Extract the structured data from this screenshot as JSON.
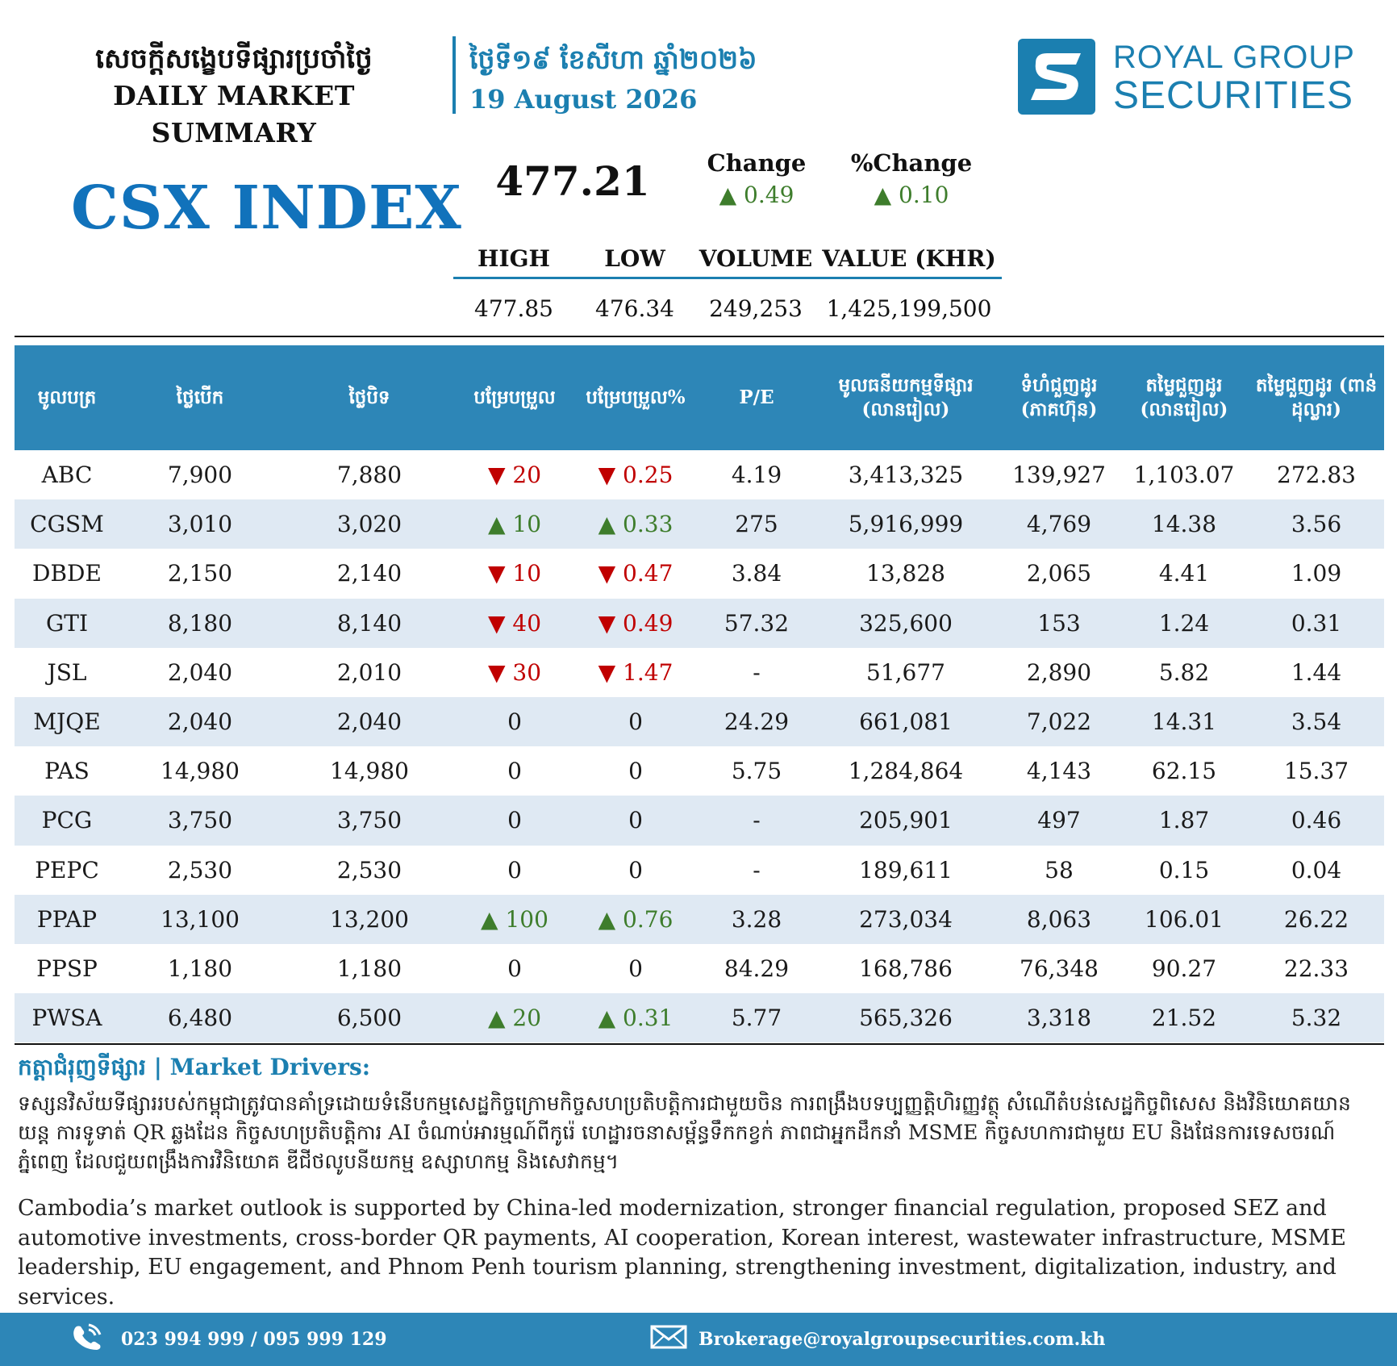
{
  "header": {
    "title_km": "សេចក្តីសង្ខេបទីផ្សារប្រចាំថ្ងៃ",
    "title_en": "DAILY MARKET SUMMARY",
    "date_km": "ថ្ងៃទី១៩ ខែសីហា ឆ្នាំ២០២៦",
    "date_en": "19 August 2026"
  },
  "logo": {
    "line1": "ROYAL GROUP",
    "line2": "SECURITIES"
  },
  "index": {
    "name": "CSX INDEX",
    "value": "477.21",
    "change_label": "Change",
    "change_value": "▲ 0.49",
    "pct_change_label": "%Change",
    "pct_change_value": "▲ 0.10",
    "stat_headers": [
      "HIGH",
      "LOW",
      "VOLUME",
      "VALUE (KHR)"
    ],
    "stat_values": [
      "477.85",
      "476.34",
      "249,253",
      "1,425,199,500"
    ]
  },
  "table": {
    "headers": [
      "មូលបត្រ",
      "ថ្លៃបើក",
      "ថ្លៃបិទ",
      "បម្រែបម្រួល",
      "បម្រែបម្រួល%",
      "P/E",
      "មូលធនីយកម្មទីផ្សារ (លានរៀល)",
      "ទំហំជួញដូរ (ភាគហ៊ុន)",
      "តម្លៃជួញដូរ (លានរៀល)",
      "តម្លៃជួញដូរ (ពាន់ដុល្លារ)"
    ],
    "rows": [
      {
        "symbol": "ABC",
        "open": "7,900",
        "close": "7,880",
        "dir": "down",
        "chg": "▼ 20",
        "pct": "▼ 0.25",
        "pe": "4.19",
        "mcap": "3,413,325",
        "vol": "139,927",
        "val_khr": "1,103.07",
        "val_usd": "272.83"
      },
      {
        "symbol": "CGSM",
        "open": "3,010",
        "close": "3,020",
        "dir": "up",
        "chg": "▲ 10",
        "pct": "▲ 0.33",
        "pe": "275",
        "mcap": "5,916,999",
        "vol": "4,769",
        "val_khr": "14.38",
        "val_usd": "3.56"
      },
      {
        "symbol": "DBDE",
        "open": "2,150",
        "close": "2,140",
        "dir": "down",
        "chg": "▼ 10",
        "pct": "▼ 0.47",
        "pe": "3.84",
        "mcap": "13,828",
        "vol": "2,065",
        "val_khr": "4.41",
        "val_usd": "1.09"
      },
      {
        "symbol": "GTI",
        "open": "8,180",
        "close": "8,140",
        "dir": "down",
        "chg": "▼ 40",
        "pct": "▼ 0.49",
        "pe": "57.32",
        "mcap": "325,600",
        "vol": "153",
        "val_khr": "1.24",
        "val_usd": "0.31"
      },
      {
        "symbol": "JSL",
        "open": "2,040",
        "close": "2,010",
        "dir": "down",
        "chg": "▼ 30",
        "pct": "▼ 1.47",
        "pe": "-",
        "mcap": "51,677",
        "vol": "2,890",
        "val_khr": "5.82",
        "val_usd": "1.44"
      },
      {
        "symbol": "MJQE",
        "open": "2,040",
        "close": "2,040",
        "dir": "flat",
        "chg": "0",
        "pct": "0",
        "pe": "24.29",
        "mcap": "661,081",
        "vol": "7,022",
        "val_khr": "14.31",
        "val_usd": "3.54"
      },
      {
        "symbol": "PAS",
        "open": "14,980",
        "close": "14,980",
        "dir": "flat",
        "chg": "0",
        "pct": "0",
        "pe": "5.75",
        "mcap": "1,284,864",
        "vol": "4,143",
        "val_khr": "62.15",
        "val_usd": "15.37"
      },
      {
        "symbol": "PCG",
        "open": "3,750",
        "close": "3,750",
        "dir": "flat",
        "chg": "0",
        "pct": "0",
        "pe": "-",
        "mcap": "205,901",
        "vol": "497",
        "val_khr": "1.87",
        "val_usd": "0.46"
      },
      {
        "symbol": "PEPC",
        "open": "2,530",
        "close": "2,530",
        "dir": "flat",
        "chg": "0",
        "pct": "0",
        "pe": "-",
        "mcap": "189,611",
        "vol": "58",
        "val_khr": "0.15",
        "val_usd": "0.04"
      },
      {
        "symbol": "PPAP",
        "open": "13,100",
        "close": "13,200",
        "dir": "up",
        "chg": "▲ 100",
        "pct": "▲ 0.76",
        "pe": "3.28",
        "mcap": "273,034",
        "vol": "8,063",
        "val_khr": "106.01",
        "val_usd": "26.22"
      },
      {
        "symbol": "PPSP",
        "open": "1,180",
        "close": "1,180",
        "dir": "flat",
        "chg": "0",
        "pct": "0",
        "pe": "84.29",
        "mcap": "168,786",
        "vol": "76,348",
        "val_khr": "90.27",
        "val_usd": "22.33"
      },
      {
        "symbol": "PWSA",
        "open": "6,480",
        "close": "6,500",
        "dir": "up",
        "chg": "▲ 20",
        "pct": "▲ 0.31",
        "pe": "5.77",
        "mcap": "565,326",
        "vol": "3,318",
        "val_khr": "21.52",
        "val_usd": "5.32"
      }
    ]
  },
  "drivers": {
    "title": "កត្តាជំរុញទីផ្សារ | Market Drivers:",
    "text_km": "ទស្សនវិស័យទីផ្សាររបស់កម្ពុជាត្រូវបានគាំទ្រដោយទំនើបកម្មសេដ្ឋកិច្ចក្រោមកិច្ចសហប្រតិបត្តិការជាមួយចិន ការពង្រឹងបទប្បញ្ញត្តិហិរញ្ញវត្ថុ សំណើតំបន់សេដ្ឋកិច្ចពិសេស និងវិនិយោគយានយន្ត ការទូទាត់ QR ឆ្លងដែន កិច្ចសហប្រតិបត្តិការ AI ចំណាប់អារម្មណ៍ពីកូរ៉េ ហេដ្ឋារចនាសម្ព័ន្ធទឹកកខ្វក់ ភាពជាអ្នកដឹកនាំ MSME កិច្ចសហការជាមួយ EU និងផែនការទេសចរណ៍ភ្នំពេញ ដែលជួយពង្រឹងការវិនិយោគ ឌីជីថលូបនីយកម្ម ឧស្សាហកម្ម និងសេវាកម្ម។",
    "text_en": "Cambodia’s market outlook is supported by China-led modernization, stronger financial regulation, proposed SEZ and automotive investments, cross-border QR payments, AI cooperation, Korean interest, wastewater infrastructure, MSME leadership, EU engagement, and Phnom Penh tourism planning, strengthening investment, digitalization, industry, and services."
  },
  "footer": {
    "phone": "023 994 999 / 095 999 129",
    "email": "Brokerage@royalgroupsecurities.com.kh"
  },
  "colors": {
    "accent": "#1b7fb0",
    "header_band": "#2d86b7",
    "row_alt": "#dfe9f3",
    "up": "#3e7d2c",
    "down": "#c00000"
  }
}
